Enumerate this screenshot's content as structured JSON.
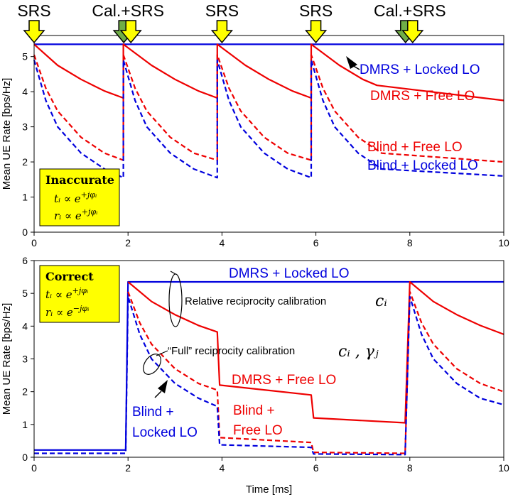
{
  "chart_data": [
    {
      "type": "line",
      "panel": "top",
      "ylabel": "Mean UE Rate [bps/Hz]",
      "xlabel": "",
      "xlim": [
        0,
        10
      ],
      "ylim": [
        0,
        5.6
      ],
      "xticks": [
        "0",
        "2",
        "4",
        "6",
        "8",
        "10"
      ],
      "yticks": [
        "0",
        "1",
        "2",
        "3",
        "4",
        "5"
      ],
      "events": [
        {
          "x": 0,
          "label": "SRS",
          "arrows": [
            "yellow"
          ]
        },
        {
          "x": 2,
          "label": "Cal.+SRS",
          "arrows": [
            "green",
            "yellow"
          ]
        },
        {
          "x": 4,
          "label": "SRS",
          "arrows": [
            "yellow"
          ]
        },
        {
          "x": 6,
          "label": "SRS",
          "arrows": [
            "yellow"
          ]
        },
        {
          "x": 8,
          "label": "Cal.+SRS",
          "arrows": [
            "green",
            "yellow"
          ]
        }
      ],
      "series": [
        {
          "name": "DMRS + Locked LO",
          "color": "#0000dd",
          "dash": false,
          "x": [
            0,
            10
          ],
          "y": [
            5.35,
            5.35
          ]
        },
        {
          "name": "DMRS + Free LO",
          "color": "#ee0000",
          "dash": false,
          "x": [
            0,
            0.5,
            1,
            1.5,
            1.9,
            1.9,
            2.5,
            3,
            3.5,
            3.9,
            3.9,
            4.5,
            5,
            5.5,
            5.9,
            5.9,
            6.5,
            7,
            7.3,
            10
          ],
          "y": [
            5.35,
            4.75,
            4.35,
            4.02,
            3.82,
            5.35,
            4.75,
            4.35,
            4.02,
            3.82,
            5.35,
            4.75,
            4.35,
            4.02,
            3.82,
            5.35,
            4.75,
            4.35,
            4.18,
            3.75
          ]
        },
        {
          "name": "Blind + Free LO",
          "color": "#ee0000",
          "dash": true,
          "x": [
            0,
            0.25,
            0.5,
            1,
            1.5,
            1.9,
            1.9,
            2.15,
            2.4,
            2.9,
            3.4,
            3.9,
            3.9,
            4.15,
            4.4,
            4.9,
            5.4,
            5.9,
            5.9,
            6.15,
            6.4,
            6.9,
            7.4,
            10
          ],
          "y": [
            5.05,
            4.1,
            3.45,
            2.7,
            2.25,
            2.05,
            5.05,
            4.1,
            3.45,
            2.7,
            2.25,
            2.05,
            5.05,
            4.1,
            3.45,
            2.7,
            2.25,
            2.05,
            5.05,
            4.1,
            3.45,
            2.7,
            2.25,
            2.0
          ]
        },
        {
          "name": "Blind + Locked LO",
          "color": "#0000dd",
          "dash": true,
          "x": [
            0,
            0.25,
            0.5,
            1,
            1.5,
            1.9,
            1.9,
            2.15,
            2.4,
            2.9,
            3.4,
            3.9,
            3.9,
            4.15,
            4.4,
            4.9,
            5.4,
            5.9,
            5.9,
            6.15,
            6.4,
            6.9,
            7.4,
            10
          ],
          "y": [
            4.9,
            3.75,
            3.0,
            2.25,
            1.8,
            1.55,
            4.9,
            3.75,
            3.0,
            2.25,
            1.8,
            1.55,
            4.9,
            3.75,
            3.0,
            2.25,
            1.8,
            1.55,
            4.9,
            3.75,
            3.0,
            2.25,
            1.8,
            1.6
          ]
        }
      ],
      "info_box": {
        "title": "Inaccurate",
        "line1": "tᵢ ∝ e",
        "exp1": "+jφᵢ",
        "line2": "rᵢ ∝ e",
        "exp2": "+jφᵢ"
      }
    },
    {
      "type": "line",
      "panel": "bottom",
      "ylabel": "Mean UE Rate [bps/Hz]",
      "xlabel": "Time [ms]",
      "xlim": [
        0,
        10
      ],
      "ylim": [
        0,
        6
      ],
      "xticks": [
        "0",
        "2",
        "4",
        "6",
        "8",
        "10"
      ],
      "yticks": [
        "0",
        "1",
        "2",
        "3",
        "4",
        "5",
        "6"
      ],
      "series": [
        {
          "name": "DMRS + Locked LO",
          "color": "#0000dd",
          "dash": false,
          "x": [
            0,
            1.95,
            2.0,
            10
          ],
          "y": [
            0.22,
            0.22,
            5.35,
            5.35
          ]
        },
        {
          "name": "DMRS + Free LO",
          "color": "#ee0000",
          "dash": false,
          "x": [
            2.0,
            2.5,
            3.0,
            3.5,
            3.9,
            3.95,
            5.9,
            5.95,
            7.9,
            8.0,
            8.5,
            9.0,
            9.5,
            10
          ],
          "y": [
            5.35,
            4.75,
            4.35,
            4.02,
            3.82,
            2.2,
            1.9,
            1.2,
            1.05,
            5.35,
            4.75,
            4.35,
            4.02,
            3.75
          ]
        },
        {
          "name": "Blind + Free LO",
          "color": "#ee0000",
          "dash": true,
          "x": [
            2.0,
            2.25,
            2.5,
            3.0,
            3.5,
            3.9,
            3.95,
            5.9,
            5.95,
            7.9,
            8.0,
            8.25,
            8.5,
            9.0,
            9.5,
            10
          ],
          "y": [
            5.05,
            4.1,
            3.45,
            2.7,
            2.25,
            2.05,
            0.6,
            0.45,
            0.15,
            0.12,
            5.05,
            4.1,
            3.45,
            2.7,
            2.25,
            2.0
          ]
        },
        {
          "name": "Blind + Locked LO",
          "color": "#0000dd",
          "dash": true,
          "x": [
            0,
            1.95,
            2.0,
            2.25,
            2.5,
            3.0,
            3.5,
            3.9,
            3.95,
            5.9,
            5.95,
            7.9,
            8.0,
            8.25,
            8.5,
            9.0,
            9.5,
            10
          ],
          "y": [
            0.12,
            0.12,
            4.9,
            3.75,
            3.0,
            2.25,
            1.8,
            1.55,
            0.38,
            0.3,
            0.1,
            0.08,
            4.9,
            3.75,
            3.0,
            2.25,
            1.8,
            1.6
          ]
        }
      ],
      "info_box": {
        "title": "Correct",
        "line1": "tᵢ ∝ e",
        "exp1": "+jφᵢ",
        "line2": "rᵢ ∝ e",
        "exp2": "−jφᵢ"
      },
      "annotations": {
        "relative": "Relative reciprocity calibration",
        "relative_sym": "cᵢ",
        "full": "“Full” reciprocity calibration",
        "full_sym": "cᵢ , γⱼ"
      }
    }
  ],
  "labels": {
    "top_dmrs_locked": "DMRS + Locked LO",
    "top_dmrs_free": "DMRS + Free LO",
    "top_blind_free": "Blind + Free LO",
    "top_blind_locked": "Blind + Locked LO",
    "bot_dmrs_locked": "DMRS + Locked LO",
    "bot_dmrs_free": "DMRS + Free LO",
    "bot_blind_free_1": "Blind +",
    "bot_blind_free_2": "Free LO",
    "bot_blind_locked_1": "Blind +",
    "bot_blind_locked_2": "Locked LO"
  },
  "colors": {
    "red": "#ee0000",
    "blue": "#0000dd",
    "yellow_arrow": "#ffff00",
    "green_arrow": "#70ad47",
    "box_fill": "#ffff00"
  }
}
